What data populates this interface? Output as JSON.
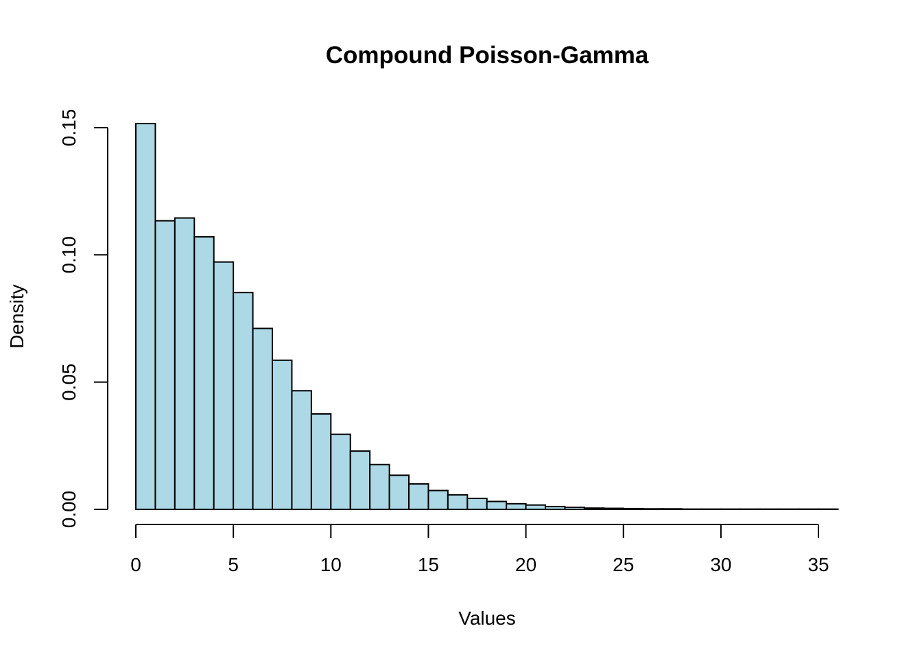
{
  "chart_data": {
    "type": "bar",
    "title": "Compound Poisson-Gamma",
    "xlabel": "Values",
    "ylabel": "Density",
    "bar_color": "#add8e6",
    "edge_color": "#000000",
    "bin_width": 1,
    "bin_start": 0,
    "xlim": [
      0,
      36
    ],
    "ylim": [
      0,
      0.15
    ],
    "x_ticks": [
      0,
      5,
      10,
      15,
      20,
      25,
      30,
      35
    ],
    "x_tick_labels": [
      "0",
      "5",
      "10",
      "15",
      "20",
      "25",
      "30",
      "35"
    ],
    "y_ticks": [
      0,
      0.05,
      0.1,
      0.15
    ],
    "y_tick_labels": [
      "0.00",
      "0.05",
      "0.10",
      "0.15"
    ],
    "grid": false,
    "values": [
      0.1516,
      0.1134,
      0.1145,
      0.1071,
      0.0972,
      0.0852,
      0.0711,
      0.0586,
      0.0466,
      0.0375,
      0.0295,
      0.0229,
      0.0176,
      0.0134,
      0.01,
      0.0074,
      0.0057,
      0.0043,
      0.0031,
      0.0022,
      0.0017,
      0.0011,
      0.0008,
      0.0005,
      0.0004,
      0.0003,
      0.0002,
      0.0002,
      0.0001,
      0.0001,
      0.0001,
      0.0001,
      0.0001,
      0.0001,
      0.0001,
      0.0001
    ]
  }
}
